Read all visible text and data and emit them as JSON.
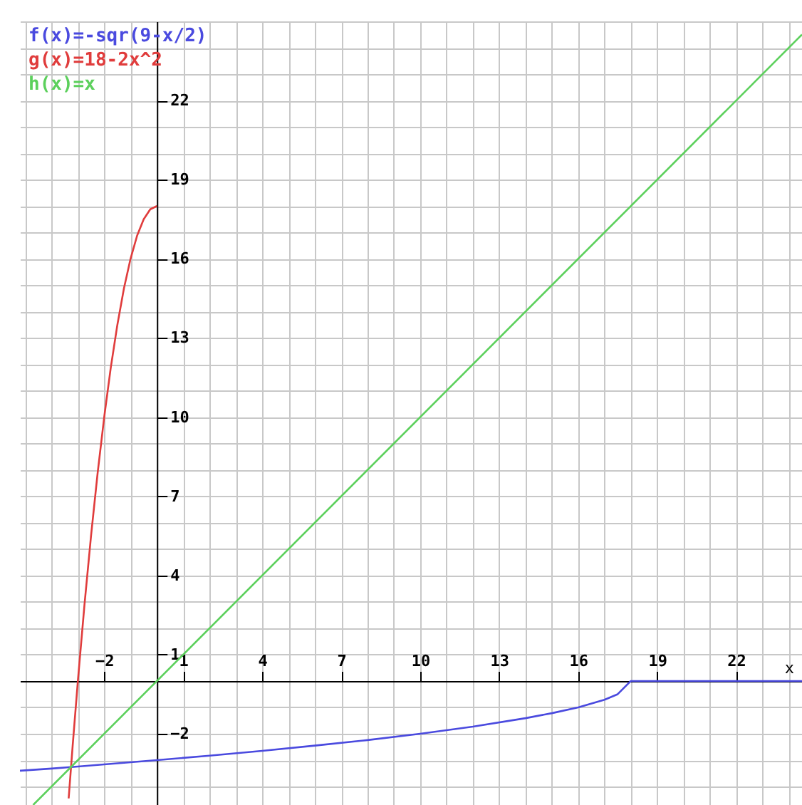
{
  "chart_data": {
    "type": "line",
    "xlabel": "x",
    "xlim": [
      -5.2,
      24.5
    ],
    "ylim": [
      -4.7,
      25
    ],
    "xticks": [
      -2,
      1,
      4,
      7,
      10,
      13,
      16,
      19,
      22
    ],
    "yticks": [
      -2,
      1,
      4,
      7,
      10,
      13,
      16,
      19,
      22
    ],
    "grid": true,
    "legend": "top left",
    "line_style": "solid",
    "series": [
      {
        "name": "f(x)=-sqr(9-x/2)",
        "color": "#4a4adf",
        "x": [
          -5.2,
          -4,
          -3,
          -2,
          -1,
          0,
          2,
          4,
          6,
          8,
          10,
          12,
          14,
          15,
          16,
          17,
          17.5,
          18,
          24.5
        ],
        "values": [
          -3.4,
          -3.32,
          -3.24,
          -3.16,
          -3.08,
          -3,
          -2.83,
          -2.65,
          -2.45,
          -2.24,
          -2,
          -1.73,
          -1.41,
          -1.22,
          -1,
          -0.71,
          -0.5,
          0,
          0
        ]
      },
      {
        "name": "g(x)=18-2x^2",
        "color": "#e03c3c",
        "x": [
          -3.35,
          -3.2,
          -3,
          -2.75,
          -2.5,
          -2.25,
          -2,
          -1.75,
          -1.5,
          -1.25,
          -1,
          -0.75,
          -0.5,
          -0.25,
          0
        ],
        "values": [
          -4.45,
          -2.48,
          0,
          2.88,
          5.5,
          7.88,
          10,
          11.88,
          13.5,
          14.88,
          16,
          16.88,
          17.5,
          17.88,
          18
        ]
      },
      {
        "name": "h(x)=x",
        "color": "#5cd05c",
        "x": [
          -4.7,
          24.5
        ],
        "values": [
          -4.7,
          24.5
        ]
      }
    ]
  }
}
